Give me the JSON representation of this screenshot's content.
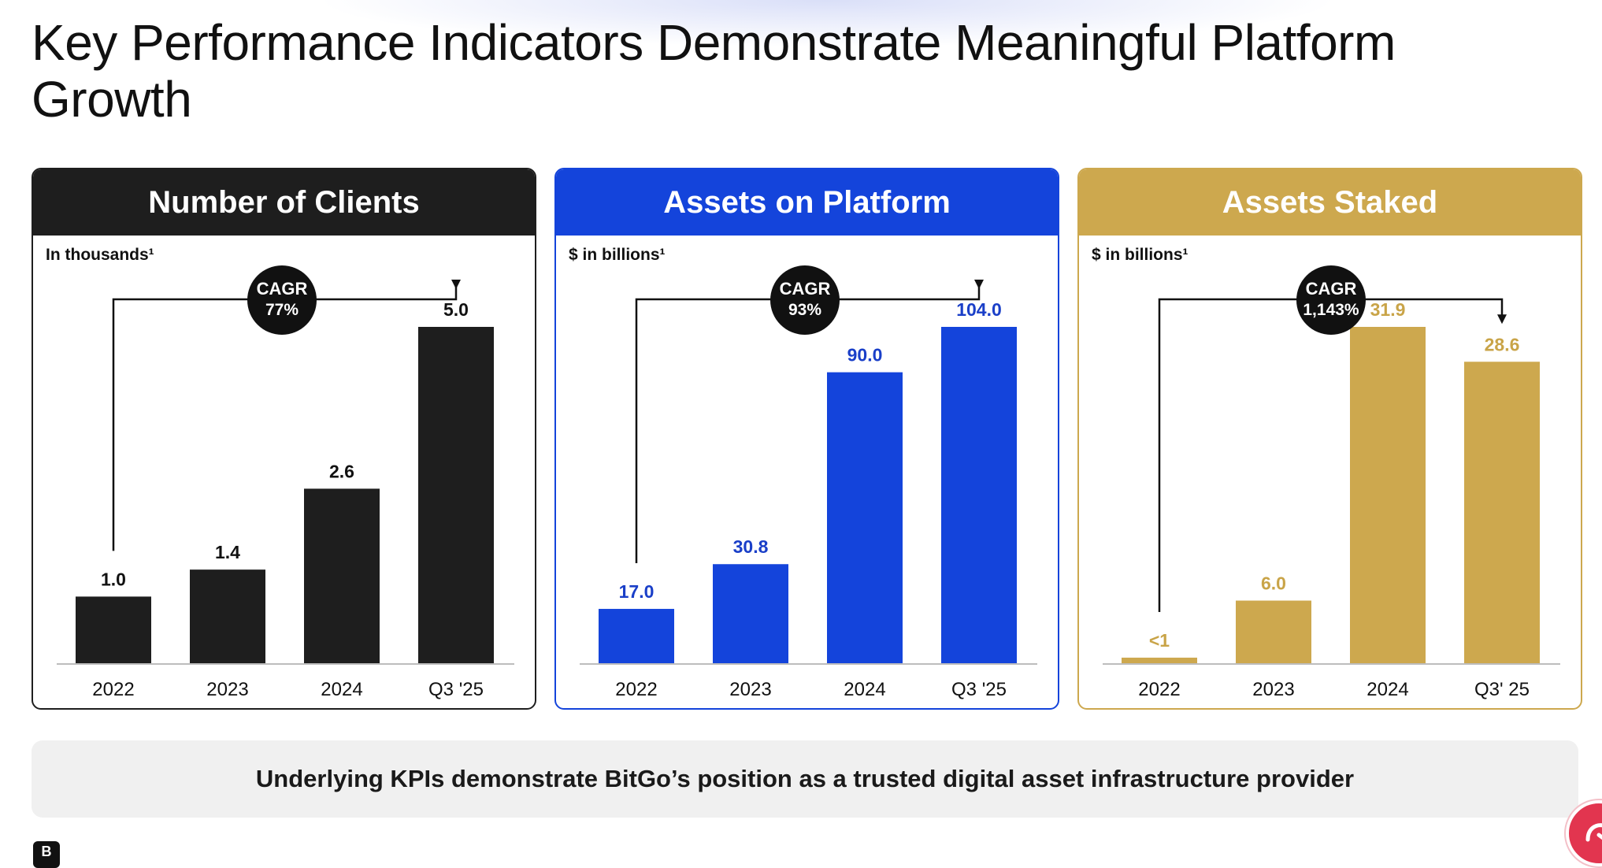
{
  "page": {
    "title": "Key Performance Indicators Demonstrate Meaningful Platform Growth",
    "callout": "Underlying KPIs demonstrate BitGo’s position as a trusted digital asset infrastructure provider",
    "brand_icon": "bitgo-logo-icon",
    "brand_glyph": "B",
    "chat_icon": "chat-bubble-icon"
  },
  "chart_data": [
    {
      "type": "bar",
      "title": "Number of Clients",
      "ylabel": "In thousands¹",
      "categories": [
        "2022",
        "2023",
        "2024",
        "Q3 '25"
      ],
      "values": [
        1.0,
        1.4,
        2.6,
        5.0
      ],
      "data_labels": [
        "1.0",
        "1.4",
        "2.6",
        "5.0"
      ],
      "ylim": [
        0,
        5.0
      ],
      "cagr_label": "CAGR",
      "cagr_value": "77%",
      "header_color": "#1e1e1e",
      "bar_color": "#1e1e1e",
      "label_color": "#111111",
      "border_color": "#1e1e1e"
    },
    {
      "type": "bar",
      "title": "Assets on Platform",
      "ylabel": "$ in billions¹",
      "categories": [
        "2022",
        "2023",
        "2024",
        "Q3 '25"
      ],
      "values": [
        17.0,
        30.8,
        90.0,
        104.0
      ],
      "data_labels": [
        "17.0",
        "30.8",
        "90.0",
        "104.0"
      ],
      "ylim": [
        0,
        104.0
      ],
      "cagr_label": "CAGR",
      "cagr_value": "93%",
      "header_color": "#1444db",
      "bar_color": "#1444db",
      "label_color": "#1a3fc8",
      "border_color": "#1444db"
    },
    {
      "type": "bar",
      "title": "Assets Staked",
      "ylabel": "$ in billions¹",
      "categories": [
        "2022",
        "2023",
        "2024",
        "Q3' 25"
      ],
      "values": [
        0.6,
        6.0,
        31.9,
        28.6
      ],
      "data_labels": [
        "<1",
        "6.0",
        "31.9",
        "28.6"
      ],
      "ylim": [
        0,
        31.9
      ],
      "cagr_label": "CAGR",
      "cagr_value": "1,143%",
      "header_color": "#cda84e",
      "bar_color": "#cda84e",
      "label_color": "#c9a448",
      "border_color": "#cda84e"
    }
  ]
}
